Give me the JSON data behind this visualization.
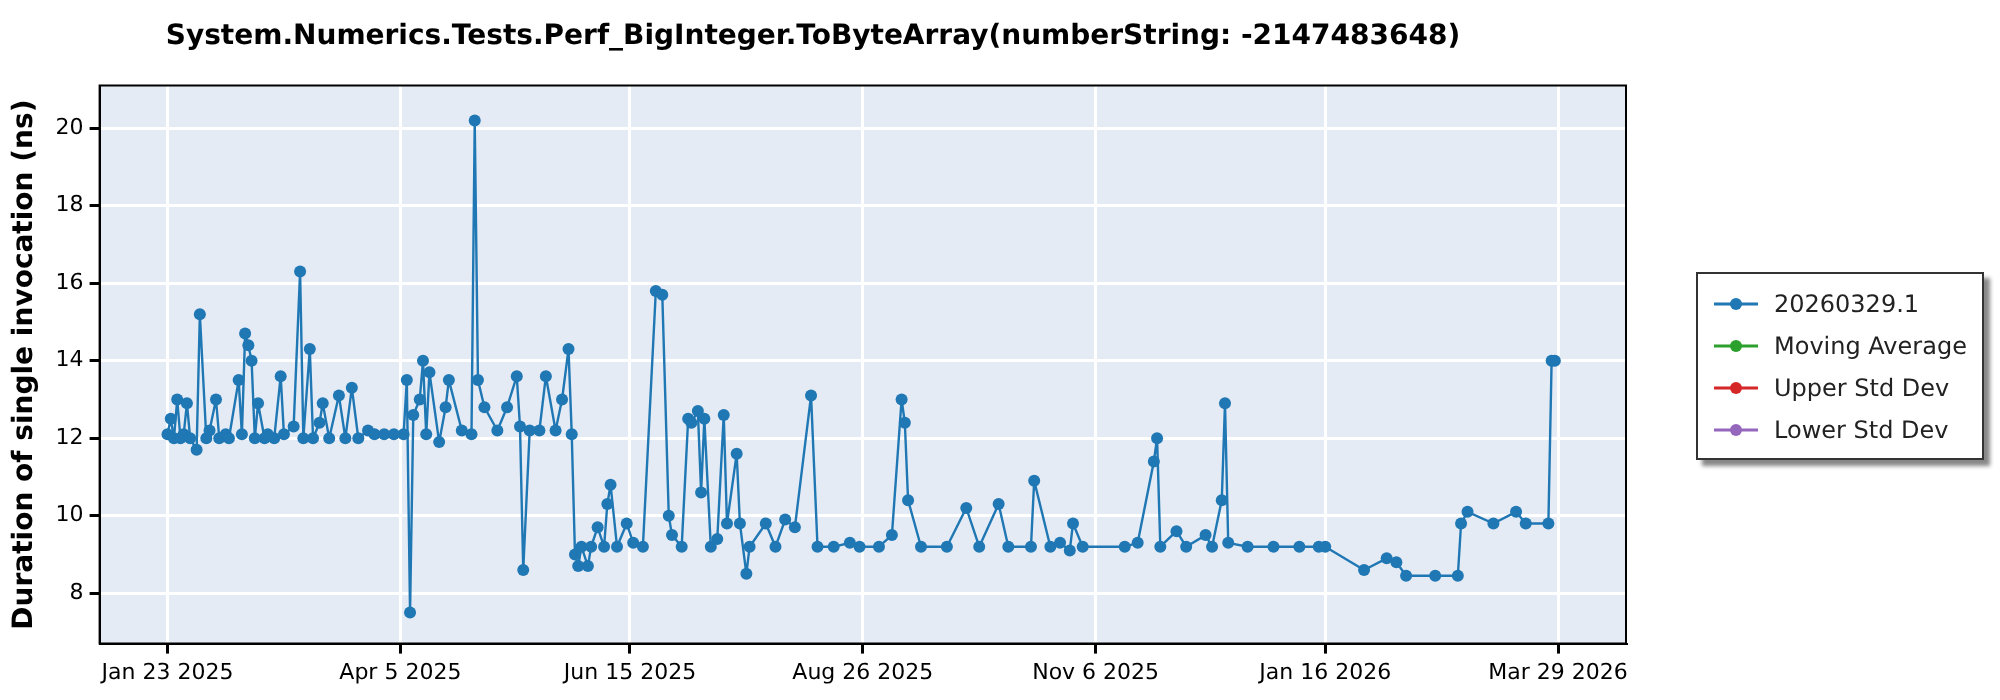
{
  "chart_data": {
    "type": "line",
    "title": "System.Numerics.Tests.Perf_BigInteger.ToByteArray(numberString: -2147483648)",
    "ylabel": "Duration of single invocation (ns)",
    "x": [
      "2025-01-23",
      "2025-01-24",
      "2025-01-25",
      "2025-01-26",
      "2025-01-27",
      "2025-01-28",
      "2025-01-29",
      "2025-01-30",
      "2025-02-01",
      "2025-02-02",
      "2025-02-04",
      "2025-02-05",
      "2025-02-07",
      "2025-02-08",
      "2025-02-10",
      "2025-02-11",
      "2025-02-14",
      "2025-02-15",
      "2025-02-16",
      "2025-02-17",
      "2025-02-18",
      "2025-02-19",
      "2025-02-20",
      "2025-02-22",
      "2025-02-23",
      "2025-02-25",
      "2025-02-27",
      "2025-02-28",
      "2025-03-03",
      "2025-03-05",
      "2025-03-06",
      "2025-03-08",
      "2025-03-09",
      "2025-03-11",
      "2025-03-12",
      "2025-03-14",
      "2025-03-17",
      "2025-03-19",
      "2025-03-21",
      "2025-03-23",
      "2025-03-26",
      "2025-03-28",
      "2025-03-31",
      "2025-04-03",
      "2025-04-06",
      "2025-04-07",
      "2025-04-08",
      "2025-04-09",
      "2025-04-11",
      "2025-04-12",
      "2025-04-13",
      "2025-04-14",
      "2025-04-17",
      "2025-04-19",
      "2025-04-20",
      "2025-04-24",
      "2025-04-27",
      "2025-04-28",
      "2025-04-29",
      "2025-05-01",
      "2025-05-05",
      "2025-05-08",
      "2025-05-11",
      "2025-05-12",
      "2025-05-13",
      "2025-05-15",
      "2025-05-18",
      "2025-05-20",
      "2025-05-23",
      "2025-05-25",
      "2025-05-27",
      "2025-05-28",
      "2025-05-29",
      "2025-05-30",
      "2025-05-31",
      "2025-06-02",
      "2025-06-03",
      "2025-06-05",
      "2025-06-07",
      "2025-06-08",
      "2025-06-09",
      "2025-06-11",
      "2025-06-14",
      "2025-06-16",
      "2025-06-19",
      "2025-06-23",
      "2025-06-25",
      "2025-06-27",
      "2025-06-28",
      "2025-07-01",
      "2025-07-03",
      "2025-07-04",
      "2025-07-06",
      "2025-07-07",
      "2025-07-08",
      "2025-07-10",
      "2025-07-12",
      "2025-07-14",
      "2025-07-15",
      "2025-07-18",
      "2025-07-19",
      "2025-07-21",
      "2025-07-22",
      "2025-07-27",
      "2025-07-30",
      "2025-08-02",
      "2025-08-05",
      "2025-08-10",
      "2025-08-12",
      "2025-08-17",
      "2025-08-22",
      "2025-08-25",
      "2025-08-31",
      "2025-09-04",
      "2025-09-07",
      "2025-09-08",
      "2025-09-09",
      "2025-09-13",
      "2025-09-21",
      "2025-09-27",
      "2025-10-01",
      "2025-10-07",
      "2025-10-10",
      "2025-10-17",
      "2025-10-18",
      "2025-10-23",
      "2025-10-26",
      "2025-10-29",
      "2025-10-30",
      "2025-11-02",
      "2025-11-15",
      "2025-11-19",
      "2025-11-24",
      "2025-11-25",
      "2025-11-26",
      "2025-12-01",
      "2025-12-04",
      "2025-12-10",
      "2025-12-12",
      "2025-12-15",
      "2025-12-16",
      "2025-12-17",
      "2025-12-23",
      "2025-12-31",
      "2026-01-08",
      "2026-01-14",
      "2026-01-16",
      "2026-01-28",
      "2026-02-04",
      "2026-02-07",
      "2026-02-10",
      "2026-02-19",
      "2026-02-26",
      "2026-02-27",
      "2026-03-01",
      "2026-03-09",
      "2026-03-16",
      "2026-03-19",
      "2026-03-26",
      "2026-03-27",
      "2026-03-28"
    ],
    "series": [
      {
        "name": "20260329.1",
        "color": "#1f77b4",
        "values": [
          12.1,
          12.5,
          12.0,
          13.0,
          12.0,
          12.1,
          12.9,
          12.0,
          11.7,
          15.2,
          12.0,
          12.2,
          13.0,
          12.0,
          12.1,
          12.0,
          13.5,
          12.1,
          14.7,
          14.4,
          14.0,
          12.0,
          12.9,
          12.0,
          12.1,
          12.0,
          13.6,
          12.1,
          12.3,
          16.3,
          12.0,
          14.3,
          12.0,
          12.4,
          12.9,
          12.0,
          13.1,
          12.0,
          13.3,
          12.0,
          12.2,
          12.1,
          12.1,
          12.1,
          12.1,
          13.5,
          7.5,
          12.6,
          13.0,
          14.0,
          12.1,
          13.7,
          11.9,
          12.8,
          13.5,
          12.2,
          12.1,
          20.2,
          13.5,
          12.8,
          12.2,
          12.8,
          13.6,
          12.3,
          8.6,
          12.2,
          12.2,
          13.6,
          12.2,
          13.0,
          14.3,
          12.1,
          9.0,
          8.7,
          9.2,
          8.7,
          9.2,
          9.7,
          9.2,
          10.3,
          10.8,
          9.2,
          9.8,
          9.3,
          9.2,
          15.8,
          15.7,
          10.0,
          9.5,
          9.2,
          12.5,
          12.4,
          12.7,
          10.6,
          12.5,
          9.2,
          9.4,
          12.6,
          9.8,
          11.6,
          9.8,
          8.5,
          9.2,
          9.8,
          9.2,
          9.9,
          9.7,
          13.1,
          9.2,
          9.2,
          9.3,
          9.2,
          9.2,
          9.5,
          13.0,
          12.4,
          10.4,
          9.2,
          9.2,
          10.2,
          9.2,
          10.3,
          9.2,
          9.2,
          10.9,
          9.2,
          9.3,
          9.1,
          9.8,
          9.2,
          9.2,
          9.3,
          11.4,
          12.0,
          9.2,
          9.6,
          9.2,
          9.5,
          9.2,
          10.4,
          12.9,
          9.3,
          9.2,
          9.2,
          9.2,
          9.2,
          9.2,
          8.6,
          8.9,
          8.8,
          8.45,
          8.45,
          8.45,
          9.8,
          10.1,
          9.8,
          10.1,
          9.8,
          9.8,
          14.0,
          14.0
        ]
      },
      {
        "name": "Moving Average",
        "color": "#2ca02c",
        "values": [
          null,
          null,
          null,
          null,
          null,
          null,
          null,
          null,
          null,
          null,
          null,
          null,
          null,
          null,
          null,
          null,
          null,
          null,
          null,
          null,
          null,
          null,
          null,
          null,
          null,
          null,
          null,
          null,
          null,
          null,
          null,
          null,
          null,
          null,
          null,
          null,
          null,
          null,
          null,
          null,
          null,
          null,
          null,
          null,
          null,
          null,
          null,
          null,
          null,
          null,
          null,
          null,
          null,
          null,
          null,
          null,
          null,
          null,
          null,
          null,
          null,
          null,
          null,
          null,
          null,
          null,
          null,
          null,
          null,
          null,
          null,
          null,
          null,
          null,
          null,
          null,
          null,
          null,
          null,
          null,
          null,
          null,
          null,
          null,
          null,
          null,
          null,
          null,
          null,
          null,
          null,
          null,
          null,
          null,
          null,
          null,
          null,
          null,
          null,
          null,
          null,
          null,
          null,
          null,
          null,
          null,
          null,
          null,
          null,
          null,
          null,
          null,
          null,
          null,
          null,
          null,
          null,
          null,
          null,
          null,
          null,
          null,
          null,
          null,
          null,
          null,
          null,
          null,
          null,
          null,
          null,
          null,
          null,
          null,
          null,
          null,
          null,
          null,
          null,
          null,
          null,
          null,
          null,
          null,
          null,
          null,
          null,
          null,
          null,
          null,
          null,
          null,
          null,
          null,
          null,
          null,
          null,
          null,
          null,
          null,
          null
        ]
      },
      {
        "name": "Upper Std Dev",
        "color": "#d62728",
        "values": [
          null,
          null,
          null,
          null,
          null,
          null,
          null,
          null,
          null,
          null,
          null,
          null,
          null,
          null,
          null,
          null,
          null,
          null,
          null,
          null,
          null,
          null,
          null,
          null,
          null,
          null,
          null,
          null,
          null,
          null,
          null,
          null,
          null,
          null,
          null,
          null,
          null,
          null,
          null,
          null,
          null,
          null,
          null,
          null,
          null,
          null,
          null,
          null,
          null,
          null,
          null,
          null,
          null,
          null,
          null,
          null,
          null,
          null,
          null,
          null,
          null,
          null,
          null,
          null,
          null,
          null,
          null,
          null,
          null,
          null,
          null,
          null,
          null,
          null,
          null,
          null,
          null,
          null,
          null,
          null,
          null,
          null,
          null,
          null,
          null,
          null,
          null,
          null,
          null,
          null,
          null,
          null,
          null,
          null,
          null,
          null,
          null,
          null,
          null,
          null,
          null,
          null,
          null,
          null,
          null,
          null,
          null,
          null,
          null,
          null,
          null,
          null,
          null,
          null,
          null,
          null,
          null,
          null,
          null,
          null,
          null,
          null,
          null,
          null,
          null,
          null,
          null,
          null,
          null,
          null,
          null,
          null,
          null,
          null,
          null,
          null,
          null,
          null,
          null,
          null,
          null,
          null,
          null,
          null,
          null,
          null,
          null,
          null,
          null,
          null,
          null,
          null,
          null,
          null,
          null,
          null,
          null,
          null,
          null,
          null,
          null
        ]
      },
      {
        "name": "Lower Std Dev",
        "color": "#9467bd",
        "values": [
          null,
          null,
          null,
          null,
          null,
          null,
          null,
          null,
          null,
          null,
          null,
          null,
          null,
          null,
          null,
          null,
          null,
          null,
          null,
          null,
          null,
          null,
          null,
          null,
          null,
          null,
          null,
          null,
          null,
          null,
          null,
          null,
          null,
          null,
          null,
          null,
          null,
          null,
          null,
          null,
          null,
          null,
          null,
          null,
          null,
          null,
          null,
          null,
          null,
          null,
          null,
          null,
          null,
          null,
          null,
          null,
          null,
          null,
          null,
          null,
          null,
          null,
          null,
          null,
          null,
          null,
          null,
          null,
          null,
          null,
          null,
          null,
          null,
          null,
          null,
          null,
          null,
          null,
          null,
          null,
          null,
          null,
          null,
          null,
          null,
          null,
          null,
          null,
          null,
          null,
          null,
          null,
          null,
          null,
          null,
          null,
          null,
          null,
          null,
          null,
          null,
          null,
          null,
          null,
          null,
          null,
          null,
          null,
          null,
          null,
          null,
          null,
          null,
          null,
          null,
          null,
          null,
          null,
          null,
          null,
          null,
          null,
          null,
          null,
          null,
          null,
          null,
          null,
          null,
          null,
          null,
          null,
          null,
          null,
          null,
          null,
          null,
          null,
          null,
          null,
          null,
          null,
          null,
          null,
          null,
          null,
          null,
          null,
          null,
          null,
          null,
          null,
          null,
          null,
          null,
          null,
          null,
          null,
          null,
          null,
          null
        ]
      }
    ],
    "xlim": [
      "2025-01-02",
      "2026-04-19"
    ],
    "xticks": [
      {
        "value": "2025-01-23",
        "label": "Jan 23 2025"
      },
      {
        "value": "2025-04-05",
        "label": "Apr 5 2025"
      },
      {
        "value": "2025-06-15",
        "label": "Jun 15 2025"
      },
      {
        "value": "2025-08-26",
        "label": "Aug 26 2025"
      },
      {
        "value": "2025-11-06",
        "label": "Nov 6 2025"
      },
      {
        "value": "2026-01-16",
        "label": "Jan 16 2026"
      },
      {
        "value": "2026-03-29",
        "label": "Mar 29 2026"
      }
    ],
    "ylim": [
      6.7,
      21.1
    ],
    "yticks": [
      8,
      10,
      12,
      14,
      16,
      18,
      20
    ],
    "grid": true,
    "legend": "right",
    "marker": "circle",
    "line_style": "solid"
  }
}
